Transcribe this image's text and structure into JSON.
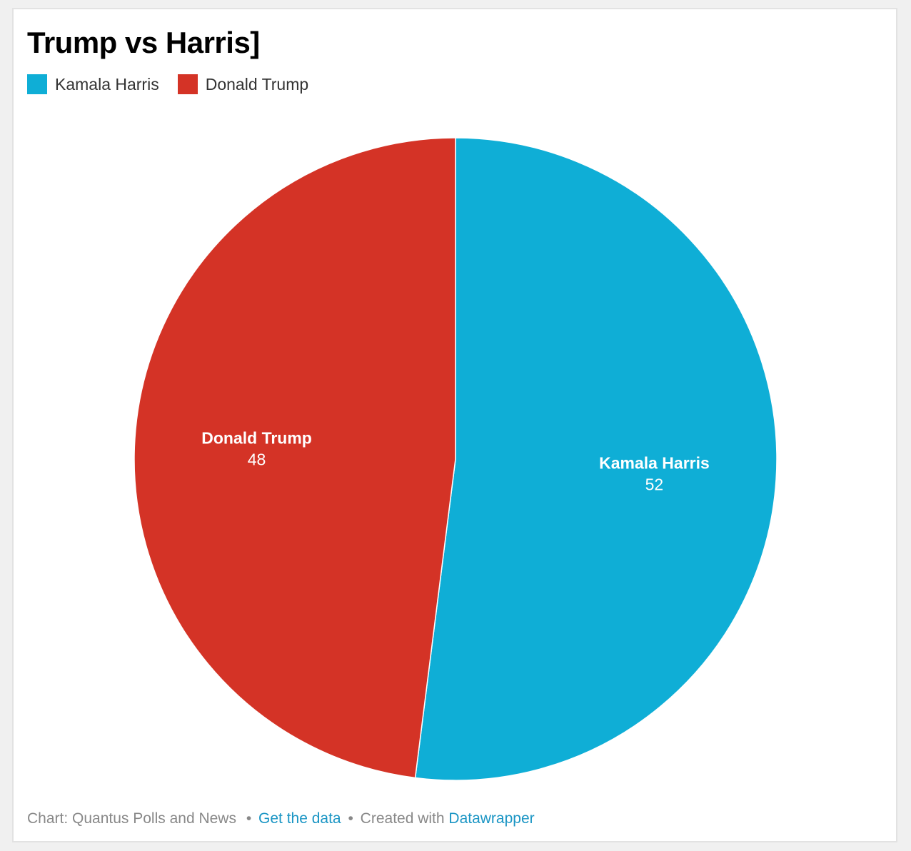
{
  "chart_data": {
    "type": "pie",
    "title": "Trump vs Harris]",
    "categories": [
      "Kamala Harris",
      "Donald Trump"
    ],
    "values": [
      52,
      48
    ],
    "colors": [
      "#0faed6",
      "#d43326"
    ],
    "legend": "top-left",
    "start_angle_deg": 0,
    "direction": "clockwise"
  },
  "legend": {
    "items": [
      {
        "label": "Kamala Harris",
        "color": "#0faed6"
      },
      {
        "label": "Donald Trump",
        "color": "#d43326"
      }
    ]
  },
  "footer": {
    "source": "Chart: Quantus Polls and News",
    "separator_1": "•",
    "get_data": "Get the data",
    "separator_2": "•",
    "created_with": "Created with",
    "tool": "Datawrapper"
  }
}
